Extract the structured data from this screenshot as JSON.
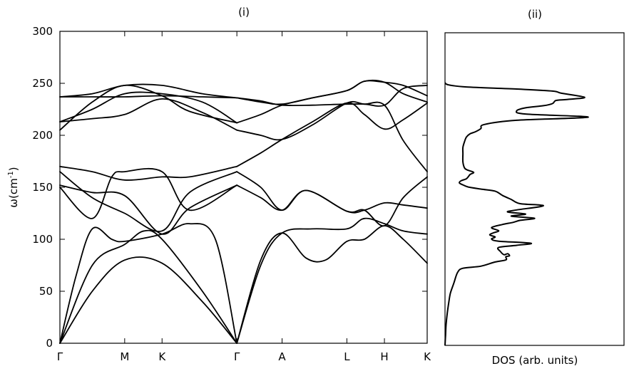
{
  "figure": {
    "panel_titles": [
      "(i)",
      "(ii)"
    ],
    "ylabel": "ω(cm",
    "ylabel_sup": "-1",
    "ylabel_suffix": ")",
    "dos_xlabel": "DOS (arb. units)"
  },
  "chart_data": [
    {
      "type": "line",
      "panel": "(i)",
      "xlabel": "",
      "ylabel": "ω(cm-1)",
      "ylim": [
        0,
        300
      ],
      "yticks": [
        0,
        50,
        100,
        150,
        200,
        250,
        300
      ],
      "xlim": [
        0,
        5.67
      ],
      "kpoints": [
        {
          "label": "Γ",
          "x": 0
        },
        {
          "label": "M",
          "x": 1
        },
        {
          "label": "K",
          "x": 1.577
        },
        {
          "label": "Γ",
          "x": 2.732
        },
        {
          "label": "A",
          "x": 3.43
        },
        {
          "label": "L",
          "x": 4.43
        },
        {
          "label": "H",
          "x": 5.01
        },
        {
          "label": "K",
          "x": 5.67
        }
      ],
      "grid": false,
      "series": [
        {
          "values": [
            [
              0,
              0
            ],
            [
              0.5,
              50
            ],
            [
              1,
              80
            ],
            [
              1.577,
              77
            ],
            [
              2.2,
              40
            ],
            [
              2.732,
              0
            ]
          ]
        },
        {
          "values": [
            [
              0,
              0
            ],
            [
              0.5,
              75
            ],
            [
              1,
              95
            ],
            [
              1.3,
              108
            ],
            [
              1.577,
              100
            ],
            [
              2.2,
              50
            ],
            [
              2.732,
              0
            ]
          ]
        },
        {
          "values": [
            [
              0,
              0
            ],
            [
              0.25,
              65
            ],
            [
              0.5,
              110
            ],
            [
              0.8,
              100
            ],
            [
              1,
              98
            ],
            [
              1.577,
              105
            ],
            [
              2,
              115
            ],
            [
              2.4,
              100
            ],
            [
              2.732,
              0
            ]
          ]
        },
        {
          "values": [
            [
              0,
              150
            ],
            [
              0.5,
              120
            ],
            [
              0.8,
              160
            ],
            [
              1,
              165
            ],
            [
              1.577,
              165
            ],
            [
              2.0,
              128
            ],
            [
              2.732,
              152
            ]
          ]
        },
        {
          "values": [
            [
              0,
              152
            ],
            [
              0.5,
              145
            ],
            [
              1,
              142
            ],
            [
              1.577,
              105
            ],
            [
              2.0,
              130
            ],
            [
              2.732,
              152
            ]
          ]
        },
        {
          "values": [
            [
              0,
              165
            ],
            [
              0.5,
              140
            ],
            [
              1,
              125
            ],
            [
              1.577,
              108
            ],
            [
              2.0,
              145
            ],
            [
              2.732,
              165
            ]
          ]
        },
        {
          "values": [
            [
              0,
              170
            ],
            [
              0.5,
              165
            ],
            [
              1,
              157
            ],
            [
              1.577,
              160
            ],
            [
              2.0,
              160
            ],
            [
              2.732,
              170
            ]
          ]
        },
        {
          "values": [
            [
              0,
              205
            ],
            [
              0.5,
              232
            ],
            [
              1,
              248
            ],
            [
              1.577,
              238
            ],
            [
              2.0,
              223
            ],
            [
              2.732,
              212
            ]
          ]
        },
        {
          "values": [
            [
              0,
              213
            ],
            [
              0.5,
              225
            ],
            [
              1,
              240
            ],
            [
              1.577,
              240
            ],
            [
              2.2,
              232
            ],
            [
              2.732,
              212
            ]
          ]
        },
        {
          "values": [
            [
              0,
              213
            ],
            [
              0.5,
              216
            ],
            [
              1,
              220
            ],
            [
              1.577,
              235
            ],
            [
              2.2,
              222
            ],
            [
              2.732,
              205
            ]
          ]
        },
        {
          "values": [
            [
              0,
              237
            ],
            [
              0.5,
              240
            ],
            [
              1,
              248
            ],
            [
              1.577,
              248
            ],
            [
              2.2,
              240
            ],
            [
              2.732,
              236
            ]
          ]
        },
        {
          "values": [
            [
              0,
              237
            ],
            [
              0.5,
              237
            ],
            [
              1,
              237
            ],
            [
              1.577,
              238
            ],
            [
              2.2,
              237
            ],
            [
              2.732,
              236
            ]
          ]
        },
        {
          "values": [
            [
              2.732,
              0
            ],
            [
              3.1,
              75
            ],
            [
              3.43,
              106
            ],
            [
              3.9,
              110
            ],
            [
              4.43,
              110
            ],
            [
              4.7,
              120
            ],
            [
              5.01,
              115
            ],
            [
              5.3,
              108
            ],
            [
              5.67,
              105
            ]
          ]
        },
        {
          "values": [
            [
              2.732,
              0
            ],
            [
              3.1,
              80
            ],
            [
              3.43,
              106
            ],
            [
              3.8,
              82
            ],
            [
              4.1,
              80
            ],
            [
              4.43,
              98
            ],
            [
              4.7,
              100
            ],
            [
              5.01,
              113
            ],
            [
              5.3,
              100
            ],
            [
              5.67,
              77
            ]
          ]
        },
        {
          "values": [
            [
              2.732,
              152
            ],
            [
              3.1,
              140
            ],
            [
              3.43,
              128
            ],
            [
              3.8,
              147
            ],
            [
              4.43,
              127
            ],
            [
              4.7,
              128
            ],
            [
              5.01,
              135
            ],
            [
              5.3,
              133
            ],
            [
              5.67,
              130
            ]
          ]
        },
        {
          "values": [
            [
              2.732,
              165
            ],
            [
              3.1,
              150
            ],
            [
              3.43,
              128
            ],
            [
              3.8,
              147
            ],
            [
              4.43,
              127
            ],
            [
              4.7,
              128
            ],
            [
              5.01,
              113
            ],
            [
              5.3,
              140
            ],
            [
              5.67,
              160
            ]
          ]
        },
        {
          "values": [
            [
              2.732,
              170
            ],
            [
              3.1,
              183
            ],
            [
              3.43,
              196
            ],
            [
              3.9,
              213
            ],
            [
              4.43,
              231
            ],
            [
              4.7,
              220
            ],
            [
              5.01,
              206
            ],
            [
              5.3,
              215
            ],
            [
              5.67,
              231
            ]
          ]
        },
        {
          "values": [
            [
              2.732,
              205
            ],
            [
              3.1,
              200
            ],
            [
              3.43,
              196
            ],
            [
              3.9,
              210
            ],
            [
              4.43,
              231
            ],
            [
              4.7,
              230
            ],
            [
              5.01,
              229
            ],
            [
              5.3,
              195
            ],
            [
              5.67,
              165
            ]
          ]
        },
        {
          "values": [
            [
              2.732,
              212
            ],
            [
              3.1,
              220
            ],
            [
              3.43,
              229
            ],
            [
              3.9,
              236
            ],
            [
              4.43,
              243
            ],
            [
              4.7,
              252
            ],
            [
              5.01,
              251
            ],
            [
              5.3,
              240
            ],
            [
              5.67,
              232
            ]
          ]
        },
        {
          "values": [
            [
              2.732,
              236
            ],
            [
              3.1,
              233
            ],
            [
              3.43,
              229
            ],
            [
              3.9,
              229
            ],
            [
              4.43,
              230
            ],
            [
              4.7,
              230
            ],
            [
              5.01,
              229
            ],
            [
              5.3,
              245
            ],
            [
              5.67,
              248
            ]
          ]
        },
        {
          "values": [
            [
              2.732,
              236
            ],
            [
              3.1,
              232
            ],
            [
              3.43,
              230
            ],
            [
              3.9,
              236
            ],
            [
              4.43,
              243
            ],
            [
              4.7,
              252
            ],
            [
              5.01,
              251
            ],
            [
              5.3,
              248
            ],
            [
              5.67,
              238
            ]
          ]
        }
      ]
    },
    {
      "type": "line",
      "panel": "(ii)",
      "xlabel": "DOS (arb. units)",
      "ylim": [
        0,
        300
      ],
      "grid": false,
      "series": [
        {
          "values": [
            [
              0.0,
              0
            ],
            [
              0.003,
              10
            ],
            [
              0.006,
              20
            ],
            [
              0.012,
              30
            ],
            [
              0.02,
              40
            ],
            [
              0.03,
              50
            ],
            [
              0.05,
              60
            ],
            [
              0.07,
              70
            ],
            [
              0.1,
              74
            ],
            [
              0.2,
              76
            ],
            [
              0.28,
              80
            ],
            [
              0.34,
              82
            ],
            [
              0.34,
              85
            ],
            [
              0.36,
              86
            ],
            [
              0.35,
              88
            ],
            [
              0.33,
              87
            ],
            [
              0.31,
              90
            ],
            [
              0.3,
              94
            ],
            [
              0.4,
              96
            ],
            [
              0.48,
              98
            ],
            [
              0.3,
              100
            ],
            [
              0.26,
              102
            ],
            [
              0.28,
              104
            ],
            [
              0.25,
              106
            ],
            [
              0.27,
              108
            ],
            [
              0.3,
              110
            ],
            [
              0.26,
              113
            ],
            [
              0.32,
              116
            ],
            [
              0.38,
              118
            ],
            [
              0.42,
              120
            ],
            [
              0.5,
              122
            ],
            [
              0.37,
              124
            ],
            [
              0.45,
              126
            ],
            [
              0.35,
              128
            ],
            [
              0.4,
              130
            ],
            [
              0.55,
              134
            ],
            [
              0.42,
              136
            ],
            [
              0.37,
              140
            ],
            [
              0.32,
              144
            ],
            [
              0.28,
              148
            ],
            [
              0.2,
              150
            ],
            [
              0.13,
              152
            ],
            [
              0.1,
              154
            ],
            [
              0.08,
              156
            ],
            [
              0.09,
              158
            ],
            [
              0.12,
              160
            ],
            [
              0.14,
              164
            ],
            [
              0.16,
              166
            ],
            [
              0.13,
              168
            ],
            [
              0.11,
              170
            ],
            [
              0.1,
              176
            ],
            [
              0.1,
              184
            ],
            [
              0.1,
              190
            ],
            [
              0.11,
              196
            ],
            [
              0.12,
              200
            ],
            [
              0.14,
              203
            ],
            [
              0.17,
              205
            ],
            [
              0.2,
              208
            ],
            [
              0.22,
              212
            ],
            [
              0.4,
              216
            ],
            [
              0.8,
              219
            ],
            [
              0.45,
              222
            ],
            [
              0.4,
              225
            ],
            [
              0.45,
              228
            ],
            [
              0.55,
              230
            ],
            [
              0.6,
              232
            ],
            [
              0.62,
              235
            ],
            [
              0.68,
              236
            ],
            [
              0.78,
              238
            ],
            [
              0.65,
              242
            ],
            [
              0.6,
              244
            ],
            [
              0.4,
              246
            ],
            [
              0.12,
              248
            ],
            [
              0.02,
              250
            ],
            [
              0.0,
              252
            ]
          ]
        }
      ]
    }
  ]
}
